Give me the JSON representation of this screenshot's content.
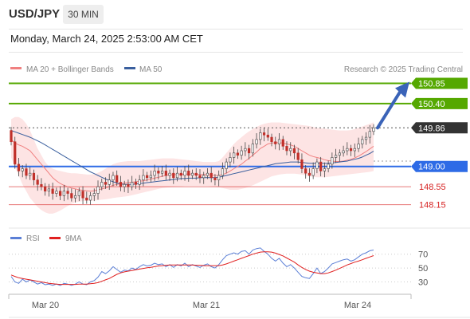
{
  "header": {
    "pair": "USD/JPY",
    "timeframe": "30 MIN",
    "datetime": "Monday, March 24, 2025 2:53:00 AM CET"
  },
  "chart_data": [
    {
      "type": "candlestick",
      "legend": [
        {
          "label": "MA 20 + Bollinger Bands",
          "color": "#f08080"
        },
        {
          "label": "MA 50",
          "color": "#3a5f9e"
        }
      ],
      "credit": "Research © 2025 Trading Central",
      "ylim": [
        147.7,
        151.0
      ],
      "x_labels": [
        "Mar 20",
        "Mar 21",
        "Mar 24"
      ],
      "levels": [
        {
          "value": 150.85,
          "label": "150.85",
          "color": "#55a800",
          "style": "solid"
        },
        {
          "value": 150.4,
          "label": "150.40",
          "color": "#55a800",
          "style": "solid"
        },
        {
          "value": 149.86,
          "label": "149.86",
          "color": "#333333",
          "style": "dotted",
          "current": true
        },
        {
          "value": 149.0,
          "label": "149.00",
          "color": "#2e6be6",
          "style": "solid"
        },
        {
          "value": 148.55,
          "label": "148.55",
          "color": "#d62020",
          "style": "solid"
        },
        {
          "value": 148.15,
          "label": "148.15",
          "color": "#d62020",
          "style": "solid"
        }
      ],
      "closes": [
        149.55,
        149.05,
        148.9,
        148.95,
        148.8,
        148.85,
        148.7,
        148.6,
        148.55,
        148.45,
        148.5,
        148.4,
        148.45,
        148.35,
        148.45,
        148.4,
        148.3,
        148.35,
        148.45,
        148.3,
        148.25,
        148.35,
        148.4,
        148.55,
        148.65,
        148.6,
        148.7,
        148.8,
        148.65,
        148.55,
        148.6,
        148.55,
        148.65,
        148.6,
        148.7,
        148.8,
        148.75,
        148.8,
        148.9,
        148.85,
        148.9,
        148.8,
        148.85,
        148.75,
        148.85,
        148.8,
        148.9,
        148.8,
        148.85,
        148.8,
        148.75,
        148.8,
        148.85,
        148.75,
        148.7,
        148.8,
        148.95,
        149.1,
        149.2,
        149.3,
        149.25,
        149.35,
        149.4,
        149.3,
        149.5,
        149.6,
        149.75,
        149.7,
        149.65,
        149.55,
        149.5,
        149.6,
        149.45,
        149.35,
        149.4,
        149.3,
        149.15,
        148.95,
        148.85,
        148.8,
        148.95,
        149.1,
        148.9,
        148.95,
        149.05,
        149.2,
        149.25,
        149.3,
        149.35,
        149.4,
        149.35,
        149.4,
        149.5,
        149.6,
        149.65,
        149.78,
        149.86
      ],
      "ma20": [
        149.6,
        149.52,
        149.48,
        149.45,
        149.4,
        149.35,
        149.25,
        149.15,
        149.05,
        148.95,
        148.85,
        148.75,
        148.68,
        148.62,
        148.58,
        148.55,
        148.52,
        148.5,
        148.48,
        148.47,
        148.46,
        148.45,
        148.46,
        148.48,
        148.5,
        148.52,
        148.55,
        148.58,
        148.6,
        148.62,
        148.63,
        148.64,
        148.65,
        148.66,
        148.67,
        148.68,
        148.7,
        148.72,
        148.74,
        148.76,
        148.78,
        148.8,
        148.81,
        148.82,
        148.82,
        148.82,
        148.83,
        148.83,
        148.83,
        148.83,
        148.82,
        148.82,
        148.82,
        148.81,
        148.8,
        148.8,
        148.82,
        148.85,
        148.9,
        148.95,
        149.0,
        149.05,
        149.12,
        149.18,
        149.25,
        149.32,
        149.4,
        149.45,
        149.5,
        149.52,
        149.53,
        149.53,
        149.52,
        149.5,
        149.48,
        149.45,
        149.4,
        149.35,
        149.3,
        149.25,
        149.22,
        149.2,
        149.18,
        149.15,
        149.13,
        149.12,
        149.11,
        149.11,
        149.12,
        149.14,
        149.16,
        149.19,
        149.23,
        149.28,
        149.33,
        149.39,
        149.45
      ],
      "ma50": [
        149.8,
        149.77,
        149.74,
        149.71,
        149.68,
        149.65,
        149.61,
        149.57,
        149.53,
        149.48,
        149.43,
        149.38,
        149.33,
        149.28,
        149.23,
        149.18,
        149.13,
        149.08,
        149.03,
        148.98,
        148.93,
        148.88,
        148.84,
        148.8,
        148.76,
        148.72,
        148.69,
        148.66,
        148.63,
        148.61,
        148.6,
        148.6,
        148.6,
        148.61,
        148.62,
        148.63,
        148.64,
        148.65,
        148.66,
        148.67,
        148.68,
        148.69,
        148.7,
        148.71,
        148.72,
        148.73,
        148.73,
        148.74,
        148.74,
        148.74,
        148.75,
        148.75,
        148.75,
        148.75,
        148.75,
        148.76,
        148.78,
        148.8,
        148.82,
        148.84,
        148.86,
        148.88,
        148.9,
        148.92,
        148.94,
        148.96,
        148.98,
        149.0,
        149.02,
        149.04,
        149.06,
        149.07,
        149.08,
        149.09,
        149.1,
        149.1,
        149.1,
        149.09,
        149.08,
        149.07,
        149.07,
        149.07,
        149.07,
        149.07,
        149.07,
        149.08,
        149.09,
        149.1,
        149.11,
        149.12,
        149.14,
        149.16,
        149.18,
        149.21,
        149.25,
        149.29,
        149.34
      ],
      "bb_upper": [
        150.05,
        150.1,
        150.1,
        150.05,
        149.95,
        149.8,
        149.6,
        149.4,
        149.25,
        149.1,
        149.0,
        148.95,
        148.92,
        148.9,
        148.88,
        148.86,
        148.85,
        148.85,
        148.84,
        148.83,
        148.82,
        148.82,
        148.83,
        148.86,
        148.9,
        148.95,
        149.0,
        149.05,
        149.08,
        149.1,
        149.11,
        149.12,
        149.12,
        149.12,
        149.12,
        149.13,
        149.14,
        149.15,
        149.16,
        149.17,
        149.18,
        149.18,
        149.18,
        149.18,
        149.17,
        149.16,
        149.15,
        149.14,
        149.13,
        149.12,
        149.11,
        149.1,
        149.1,
        149.1,
        149.1,
        149.12,
        149.2,
        149.3,
        149.4,
        149.5,
        149.58,
        149.65,
        149.72,
        149.78,
        149.83,
        149.88,
        149.92,
        149.95,
        149.97,
        149.98,
        149.98,
        149.98,
        149.97,
        149.96,
        149.95,
        149.94,
        149.93,
        149.92,
        149.91,
        149.9,
        149.88,
        149.86,
        149.85,
        149.84,
        149.83,
        149.82,
        149.81,
        149.8,
        149.8,
        149.8,
        149.81,
        149.83,
        149.86,
        149.89,
        149.92,
        149.95,
        149.98
      ],
      "bb_lower": [
        149.2,
        149.0,
        148.8,
        148.6,
        148.45,
        148.3,
        148.2,
        148.1,
        148.03,
        147.98,
        147.95,
        147.95,
        147.98,
        148.02,
        148.07,
        148.12,
        148.17,
        148.2,
        148.22,
        148.23,
        148.24,
        148.24,
        148.24,
        148.25,
        148.26,
        148.27,
        148.28,
        148.3,
        148.31,
        148.32,
        148.33,
        148.34,
        148.36,
        148.38,
        148.4,
        148.42,
        148.44,
        148.46,
        148.48,
        148.5,
        148.52,
        148.53,
        148.54,
        148.55,
        148.56,
        148.56,
        148.57,
        148.57,
        148.57,
        148.57,
        148.57,
        148.57,
        148.57,
        148.56,
        148.55,
        148.54,
        148.52,
        148.5,
        148.48,
        148.48,
        148.48,
        148.5,
        148.52,
        148.55,
        148.58,
        148.62,
        148.66,
        148.7,
        148.74,
        148.78,
        148.8,
        148.82,
        148.83,
        148.84,
        148.84,
        148.84,
        148.83,
        148.82,
        148.8,
        148.78,
        148.77,
        148.76,
        148.76,
        148.76,
        148.77,
        148.78,
        148.79,
        148.8,
        148.81,
        148.82,
        148.83,
        148.84,
        148.85,
        148.86,
        148.87,
        148.88,
        148.9
      ],
      "arrow": {
        "from": 149.86,
        "to": 150.85
      }
    },
    {
      "type": "line",
      "legend": [
        {
          "label": "RSI",
          "color": "#5b7fd6"
        },
        {
          "label": "9MA",
          "color": "#e02020"
        }
      ],
      "ylim": [
        18,
        80
      ],
      "ticks": [
        "70",
        "50",
        "30"
      ],
      "rsi": [
        38,
        30,
        28,
        34,
        30,
        33,
        30,
        27,
        29,
        26,
        27,
        25,
        27,
        25,
        28,
        27,
        25,
        27,
        30,
        27,
        26,
        30,
        32,
        37,
        45,
        42,
        46,
        52,
        48,
        44,
        47,
        46,
        50,
        48,
        52,
        55,
        53,
        54,
        57,
        55,
        56,
        52,
        55,
        51,
        55,
        53,
        57,
        52,
        55,
        53,
        51,
        54,
        56,
        52,
        50,
        55,
        62,
        68,
        70,
        72,
        70,
        74,
        75,
        70,
        76,
        78,
        79,
        74,
        70,
        64,
        60,
        64,
        57,
        52,
        55,
        50,
        44,
        38,
        36,
        35,
        42,
        50,
        42,
        45,
        50,
        56,
        58,
        60,
        62,
        63,
        60,
        62,
        66,
        70,
        72,
        75,
        76
      ],
      "rsi_ma": [
        40,
        38,
        36,
        35,
        34,
        33,
        32,
        31,
        30,
        29,
        28,
        27.5,
        27,
        26.5,
        26.5,
        26.5,
        26.5,
        26.5,
        27,
        27,
        27,
        27.5,
        28,
        29,
        31,
        33,
        35,
        38,
        41,
        43,
        44.5,
        45.5,
        46.5,
        47.5,
        48.5,
        49.5,
        50.5,
        51,
        52,
        53,
        53.5,
        54,
        54.5,
        54.5,
        54.5,
        54.5,
        54.5,
        54.5,
        54.5,
        54,
        54,
        53.5,
        53.5,
        53.5,
        53.5,
        53.5,
        54.5,
        56,
        58,
        60,
        62,
        64,
        66,
        68,
        70,
        71.5,
        73,
        73.5,
        73.5,
        73,
        71.5,
        69.5,
        67.5,
        64.5,
        61.5,
        58.5,
        54.5,
        51,
        48,
        45.5,
        44,
        43,
        42,
        42,
        43,
        45,
        47,
        49.5,
        52,
        54.5,
        56.5,
        58.5,
        60,
        62,
        64,
        66,
        68
      ]
    }
  ]
}
